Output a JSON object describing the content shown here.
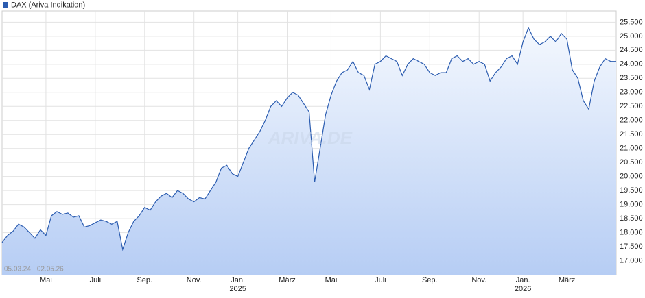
{
  "chart_data": {
    "type": "area",
    "subtitle": "05.03.24 - 02.05.26",
    "watermark": "ARIVA.DE",
    "categories": [
      null,
      null,
      null,
      null,
      null,
      null,
      null,
      null,
      "Mai",
      null,
      null,
      null,
      null,
      null,
      null,
      null,
      null,
      "Juli",
      null,
      null,
      null,
      null,
      null,
      null,
      null,
      null,
      "Sep.",
      null,
      null,
      null,
      null,
      null,
      null,
      null,
      null,
      "Nov.",
      null,
      null,
      null,
      null,
      null,
      null,
      null,
      "Jan.",
      null,
      null,
      null,
      null,
      null,
      null,
      null,
      null,
      "März",
      null,
      null,
      null,
      null,
      null,
      null,
      null,
      "Mai",
      null,
      null,
      null,
      null,
      null,
      null,
      null,
      null,
      "Juli",
      null,
      null,
      null,
      null,
      null,
      null,
      null,
      null,
      "Sep.",
      null,
      null,
      null,
      null,
      null,
      null,
      null,
      null,
      "Nov.",
      null,
      null,
      null,
      null,
      null,
      null,
      null,
      "Jan.",
      null,
      null,
      null,
      null,
      null,
      null,
      null,
      "März",
      null,
      null,
      null,
      null,
      null,
      null,
      null,
      null,
      null
    ],
    "year_labels": [
      null,
      null,
      null,
      null,
      null,
      null,
      null,
      null,
      null,
      null,
      null,
      null,
      null,
      null,
      null,
      null,
      null,
      null,
      null,
      null,
      null,
      null,
      null,
      null,
      null,
      null,
      null,
      null,
      null,
      null,
      null,
      null,
      null,
      null,
      null,
      null,
      null,
      null,
      null,
      null,
      null,
      null,
      null,
      "2025",
      null,
      null,
      null,
      null,
      null,
      null,
      null,
      null,
      null,
      null,
      null,
      null,
      null,
      null,
      null,
      null,
      null,
      null,
      null,
      null,
      null,
      null,
      null,
      null,
      null,
      null,
      null,
      null,
      null,
      null,
      null,
      null,
      null,
      null,
      null,
      null,
      null,
      null,
      null,
      null,
      null,
      null,
      null,
      null,
      null,
      null,
      null,
      null,
      null,
      null,
      null,
      "2026",
      null,
      null,
      null,
      null,
      null,
      null,
      null,
      null,
      null,
      null,
      null,
      null,
      null,
      null,
      null,
      null,
      null
    ],
    "series": [
      {
        "name": "DAX (Ariva Indikation)",
        "color": "#2b5cb0",
        "values": [
          17650,
          17900,
          18050,
          18300,
          18200,
          18000,
          17800,
          18100,
          17900,
          18600,
          18750,
          18650,
          18700,
          18550,
          18600,
          18200,
          18250,
          18350,
          18450,
          18400,
          18300,
          18400,
          17400,
          18000,
          18400,
          18600,
          18900,
          18800,
          19100,
          19300,
          19400,
          19250,
          19500,
          19400,
          19200,
          19100,
          19250,
          19200,
          19500,
          19800,
          20300,
          20400,
          20100,
          20000,
          20500,
          21000,
          21300,
          21600,
          22000,
          22500,
          22700,
          22500,
          22800,
          23000,
          22900,
          22600,
          22300,
          19800,
          21000,
          22200,
          22900,
          23400,
          23700,
          23800,
          24100,
          23700,
          23600,
          23100,
          24000,
          24100,
          24300,
          24200,
          24100,
          23600,
          24000,
          24200,
          24100,
          24000,
          23700,
          23600,
          23700,
          23700,
          24200,
          24300,
          24100,
          24200,
          24000,
          24100,
          24000,
          23400,
          23700,
          23900,
          24200,
          24300,
          24000,
          24800,
          25300,
          24900,
          24700,
          24800,
          25000,
          24800,
          25100,
          24900,
          23800,
          23500,
          22700,
          22400,
          23400,
          23900,
          24200,
          24100,
          24100
        ]
      }
    ],
    "ylim": [
      16500,
      25900
    ],
    "yticks": [
      {
        "value": 17000,
        "label": "17.000"
      },
      {
        "value": 17500,
        "label": "17.500"
      },
      {
        "value": 18000,
        "label": "18.000"
      },
      {
        "value": 18500,
        "label": "18.500"
      },
      {
        "value": 19000,
        "label": "19.000"
      },
      {
        "value": 19500,
        "label": "19.500"
      },
      {
        "value": 20000,
        "label": "20.000"
      },
      {
        "value": 20500,
        "label": "20.500"
      },
      {
        "value": 21000,
        "label": "21.000"
      },
      {
        "value": 21500,
        "label": "21.500"
      },
      {
        "value": 22000,
        "label": "22.000"
      },
      {
        "value": 22500,
        "label": "22.500"
      },
      {
        "value": 23000,
        "label": "23.000"
      },
      {
        "value": 23500,
        "label": "23.500"
      },
      {
        "value": 24000,
        "label": "24.000"
      },
      {
        "value": 24500,
        "label": "24.500"
      },
      {
        "value": 25000,
        "label": "25.000"
      },
      {
        "value": 25500,
        "label": "25.500"
      }
    ],
    "grid": true
  }
}
